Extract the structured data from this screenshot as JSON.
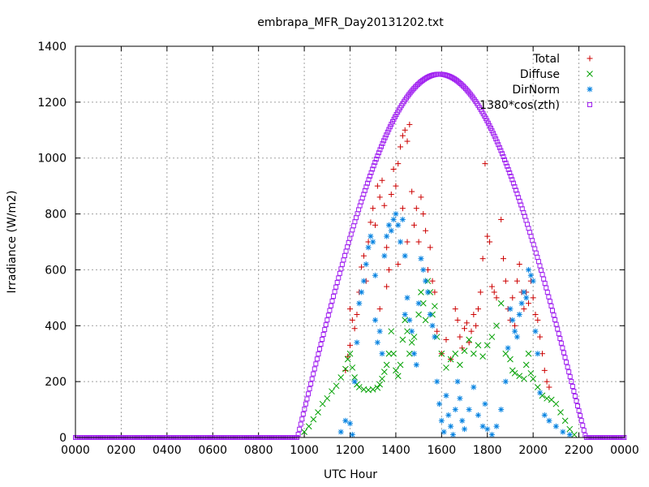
{
  "chart_data": {
    "type": "scatter",
    "title": "embrapa_MFR_Day20131202.txt",
    "xlabel": "UTC Hour",
    "ylabel": "Irradiance (W/m2)",
    "xlim": [
      0,
      24
    ],
    "ylim": [
      0,
      1400
    ],
    "x_ticks": [
      {
        "value": 0,
        "label": "0000"
      },
      {
        "value": 2,
        "label": "0200"
      },
      {
        "value": 4,
        "label": "0400"
      },
      {
        "value": 6,
        "label": "0600"
      },
      {
        "value": 8,
        "label": "0800"
      },
      {
        "value": 10,
        "label": "1000"
      },
      {
        "value": 12,
        "label": "1200"
      },
      {
        "value": 14,
        "label": "1400"
      },
      {
        "value": 16,
        "label": "1600"
      },
      {
        "value": 18,
        "label": "1800"
      },
      {
        "value": 20,
        "label": "2000"
      },
      {
        "value": 22,
        "label": "2200"
      },
      {
        "value": 24,
        "label": "0000"
      }
    ],
    "y_ticks": [
      {
        "value": 0,
        "label": "0"
      },
      {
        "value": 200,
        "label": "200"
      },
      {
        "value": 400,
        "label": "400"
      },
      {
        "value": 600,
        "label": "600"
      },
      {
        "value": 800,
        "label": "800"
      },
      {
        "value": 1000,
        "label": "1000"
      },
      {
        "value": 1200,
        "label": "1200"
      },
      {
        "value": 1400,
        "label": "1400"
      }
    ],
    "grid": true,
    "legend_position": "top-right",
    "series": [
      {
        "name": "Total",
        "marker": "+",
        "color": "#cc0000",
        "points": [
          [
            11.8,
            240
          ],
          [
            11.9,
            290
          ],
          [
            12.0,
            330
          ],
          [
            12.0,
            460
          ],
          [
            12.1,
            420
          ],
          [
            12.2,
            390
          ],
          [
            12.3,
            440
          ],
          [
            12.4,
            520
          ],
          [
            12.5,
            610
          ],
          [
            12.6,
            650
          ],
          [
            12.7,
            560
          ],
          [
            12.8,
            700
          ],
          [
            12.9,
            770
          ],
          [
            13.0,
            820
          ],
          [
            13.1,
            760
          ],
          [
            13.2,
            900
          ],
          [
            13.3,
            860
          ],
          [
            13.3,
            460
          ],
          [
            13.4,
            920
          ],
          [
            13.5,
            830
          ],
          [
            13.6,
            680
          ],
          [
            13.6,
            540
          ],
          [
            13.7,
            600
          ],
          [
            13.8,
            870
          ],
          [
            13.9,
            960
          ],
          [
            14.0,
            900
          ],
          [
            14.1,
            980
          ],
          [
            14.1,
            620
          ],
          [
            14.2,
            1040
          ],
          [
            14.3,
            1080
          ],
          [
            14.3,
            820
          ],
          [
            14.4,
            1100
          ],
          [
            14.5,
            1060
          ],
          [
            14.5,
            700
          ],
          [
            14.6,
            1120
          ],
          [
            14.7,
            880
          ],
          [
            14.8,
            760
          ],
          [
            14.9,
            820
          ],
          [
            15.0,
            700
          ],
          [
            15.1,
            860
          ],
          [
            15.2,
            800
          ],
          [
            15.3,
            740
          ],
          [
            15.4,
            600
          ],
          [
            15.5,
            680
          ],
          [
            15.6,
            560
          ],
          [
            15.7,
            520
          ],
          [
            15.8,
            380
          ],
          [
            16.0,
            300
          ],
          [
            16.2,
            350
          ],
          [
            16.4,
            280
          ],
          [
            16.6,
            460
          ],
          [
            16.7,
            420
          ],
          [
            16.8,
            360
          ],
          [
            16.9,
            320
          ],
          [
            17.0,
            390
          ],
          [
            17.1,
            410
          ],
          [
            17.2,
            340
          ],
          [
            17.3,
            380
          ],
          [
            17.4,
            440
          ],
          [
            17.5,
            400
          ],
          [
            17.6,
            460
          ],
          [
            17.7,
            520
          ],
          [
            17.8,
            640
          ],
          [
            17.9,
            980
          ],
          [
            18.0,
            720
          ],
          [
            18.1,
            700
          ],
          [
            18.2,
            540
          ],
          [
            18.3,
            520
          ],
          [
            18.4,
            500
          ],
          [
            18.6,
            780
          ],
          [
            18.7,
            640
          ],
          [
            18.8,
            560
          ],
          [
            18.9,
            460
          ],
          [
            19.0,
            420
          ],
          [
            19.1,
            500
          ],
          [
            19.2,
            400
          ],
          [
            19.3,
            560
          ],
          [
            19.4,
            620
          ],
          [
            19.5,
            520
          ],
          [
            19.6,
            460
          ],
          [
            19.7,
            520
          ],
          [
            19.8,
            480
          ],
          [
            19.9,
            560
          ],
          [
            20.0,
            500
          ],
          [
            20.1,
            440
          ],
          [
            20.2,
            420
          ],
          [
            20.3,
            360
          ],
          [
            20.4,
            300
          ],
          [
            20.5,
            240
          ],
          [
            20.6,
            200
          ],
          [
            20.7,
            180
          ]
        ]
      },
      {
        "name": "Diffuse",
        "marker": "x",
        "color": "#00a000",
        "points": [
          [
            10.0,
            20
          ],
          [
            10.2,
            40
          ],
          [
            10.4,
            65
          ],
          [
            10.6,
            90
          ],
          [
            10.8,
            120
          ],
          [
            11.0,
            140
          ],
          [
            11.2,
            165
          ],
          [
            11.4,
            185
          ],
          [
            11.6,
            215
          ],
          [
            11.8,
            245
          ],
          [
            11.9,
            280
          ],
          [
            12.0,
            300
          ],
          [
            12.1,
            250
          ],
          [
            12.2,
            215
          ],
          [
            12.3,
            190
          ],
          [
            12.4,
            180
          ],
          [
            12.6,
            172
          ],
          [
            12.8,
            170
          ],
          [
            13.0,
            172
          ],
          [
            13.2,
            178
          ],
          [
            13.3,
            190
          ],
          [
            13.4,
            210
          ],
          [
            13.5,
            235
          ],
          [
            13.6,
            260
          ],
          [
            13.7,
            300
          ],
          [
            13.8,
            380
          ],
          [
            13.9,
            300
          ],
          [
            14.0,
            240
          ],
          [
            14.1,
            220
          ],
          [
            14.2,
            260
          ],
          [
            14.3,
            350
          ],
          [
            14.4,
            420
          ],
          [
            14.5,
            380
          ],
          [
            14.6,
            300
          ],
          [
            14.7,
            340
          ],
          [
            14.8,
            360
          ],
          [
            15.0,
            440
          ],
          [
            15.1,
            520
          ],
          [
            15.2,
            480
          ],
          [
            15.3,
            420
          ],
          [
            15.4,
            560
          ],
          [
            15.5,
            520
          ],
          [
            15.6,
            440
          ],
          [
            15.7,
            470
          ],
          [
            15.8,
            360
          ],
          [
            16.0,
            300
          ],
          [
            16.2,
            250
          ],
          [
            16.4,
            280
          ],
          [
            16.6,
            300
          ],
          [
            16.8,
            260
          ],
          [
            17.0,
            310
          ],
          [
            17.2,
            350
          ],
          [
            17.4,
            300
          ],
          [
            17.6,
            330
          ],
          [
            17.8,
            290
          ],
          [
            18.0,
            330
          ],
          [
            18.2,
            360
          ],
          [
            18.4,
            400
          ],
          [
            18.6,
            480
          ],
          [
            18.8,
            300
          ],
          [
            19.0,
            280
          ],
          [
            19.1,
            240
          ],
          [
            19.2,
            230
          ],
          [
            19.4,
            220
          ],
          [
            19.6,
            210
          ],
          [
            19.7,
            260
          ],
          [
            19.8,
            300
          ],
          [
            19.9,
            230
          ],
          [
            20.0,
            210
          ],
          [
            20.2,
            180
          ],
          [
            20.4,
            150
          ],
          [
            20.6,
            140
          ],
          [
            20.8,
            135
          ],
          [
            21.0,
            120
          ],
          [
            21.2,
            90
          ],
          [
            21.4,
            60
          ],
          [
            21.6,
            30
          ],
          [
            21.8,
            10
          ]
        ]
      },
      {
        "name": "DirNorm",
        "marker": "*",
        "color": "#0080e0",
        "points": [
          [
            11.6,
            20
          ],
          [
            11.8,
            60
          ],
          [
            12.0,
            50
          ],
          [
            12.1,
            10
          ],
          [
            12.2,
            200
          ],
          [
            12.3,
            340
          ],
          [
            12.4,
            480
          ],
          [
            12.5,
            520
          ],
          [
            12.6,
            560
          ],
          [
            12.7,
            620
          ],
          [
            12.8,
            680
          ],
          [
            12.9,
            720
          ],
          [
            13.0,
            700
          ],
          [
            13.1,
            580
          ],
          [
            13.1,
            420
          ],
          [
            13.2,
            340
          ],
          [
            13.3,
            380
          ],
          [
            13.4,
            300
          ],
          [
            13.5,
            650
          ],
          [
            13.6,
            720
          ],
          [
            13.7,
            760
          ],
          [
            13.8,
            740
          ],
          [
            13.9,
            780
          ],
          [
            14.0,
            800
          ],
          [
            14.1,
            760
          ],
          [
            14.2,
            700
          ],
          [
            14.3,
            780
          ],
          [
            14.4,
            650
          ],
          [
            14.4,
            440
          ],
          [
            14.5,
            500
          ],
          [
            14.6,
            420
          ],
          [
            14.7,
            380
          ],
          [
            14.8,
            300
          ],
          [
            14.9,
            260
          ],
          [
            15.0,
            480
          ],
          [
            15.1,
            640
          ],
          [
            15.2,
            600
          ],
          [
            15.3,
            560
          ],
          [
            15.4,
            520
          ],
          [
            15.5,
            440
          ],
          [
            15.6,
            400
          ],
          [
            15.7,
            360
          ],
          [
            15.8,
            200
          ],
          [
            15.9,
            120
          ],
          [
            16.0,
            60
          ],
          [
            16.1,
            20
          ],
          [
            16.2,
            150
          ],
          [
            16.3,
            80
          ],
          [
            16.4,
            40
          ],
          [
            16.5,
            10
          ],
          [
            16.6,
            100
          ],
          [
            16.7,
            200
          ],
          [
            16.8,
            140
          ],
          [
            16.9,
            60
          ],
          [
            17.0,
            30
          ],
          [
            17.2,
            100
          ],
          [
            17.4,
            180
          ],
          [
            17.6,
            80
          ],
          [
            17.8,
            40
          ],
          [
            17.9,
            120
          ],
          [
            18.0,
            30
          ],
          [
            18.2,
            10
          ],
          [
            18.4,
            40
          ],
          [
            18.6,
            100
          ],
          [
            18.8,
            200
          ],
          [
            18.9,
            320
          ],
          [
            19.0,
            460
          ],
          [
            19.1,
            420
          ],
          [
            19.2,
            380
          ],
          [
            19.3,
            360
          ],
          [
            19.4,
            440
          ],
          [
            19.5,
            480
          ],
          [
            19.6,
            520
          ],
          [
            19.7,
            500
          ],
          [
            19.8,
            600
          ],
          [
            19.9,
            580
          ],
          [
            20.0,
            560
          ],
          [
            20.1,
            380
          ],
          [
            20.2,
            300
          ],
          [
            20.3,
            160
          ],
          [
            20.5,
            80
          ],
          [
            20.7,
            60
          ],
          [
            21.0,
            40
          ],
          [
            21.3,
            20
          ],
          [
            21.6,
            10
          ]
        ]
      },
      {
        "name": "1380*cos(zth)",
        "marker": "square",
        "color": "#a020f0",
        "model": {
          "rise": 9.7,
          "set": 22.3,
          "peak_x": 15.9,
          "peak_y": 1300
        }
      }
    ]
  }
}
